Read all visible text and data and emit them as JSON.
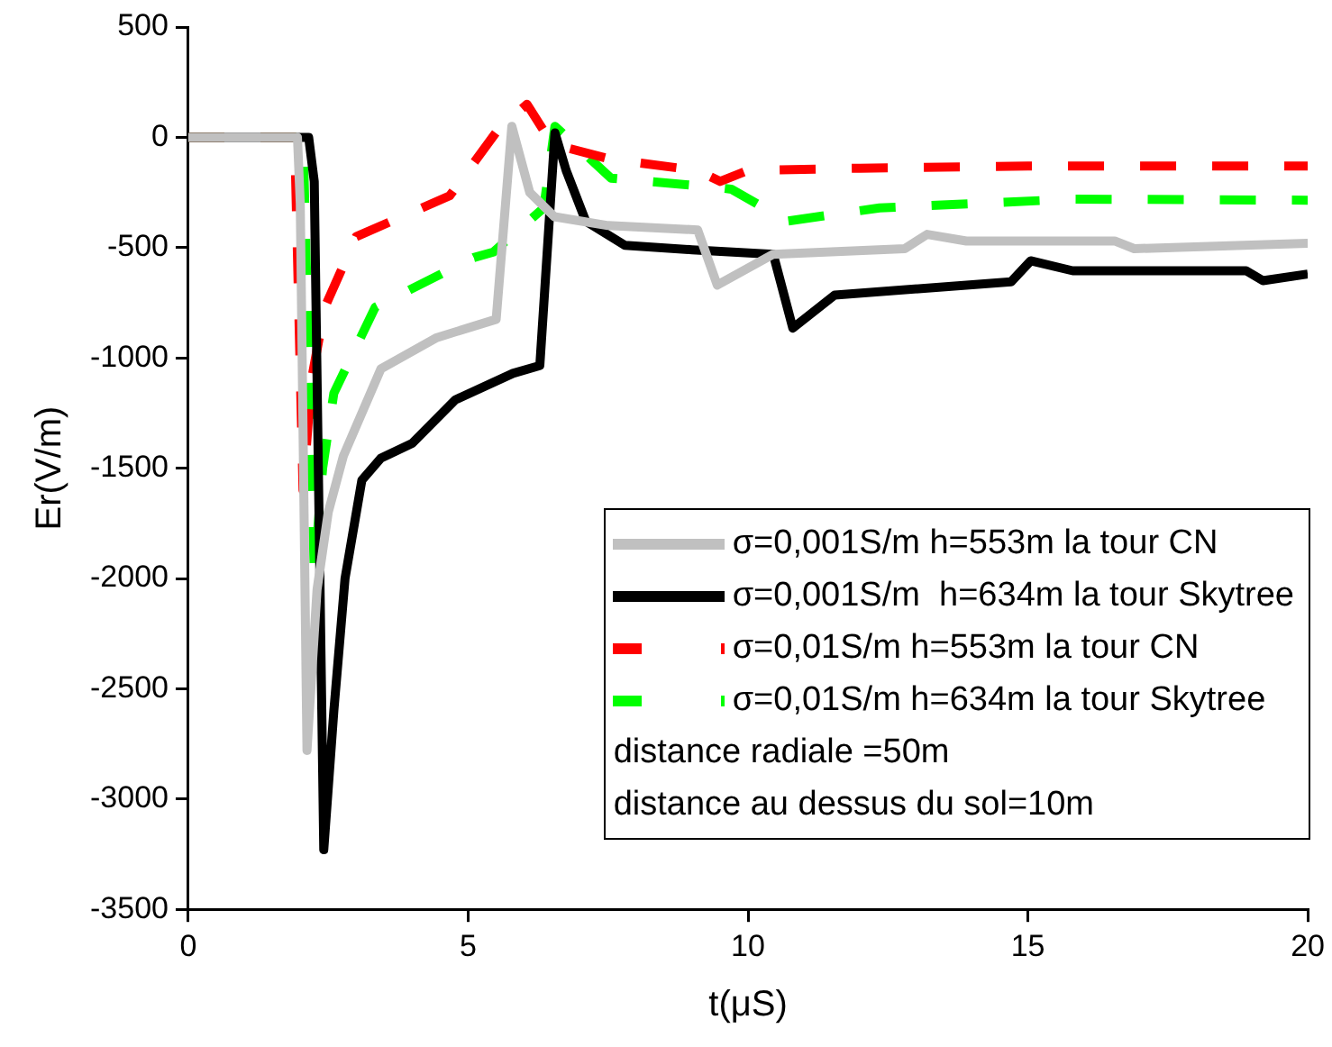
{
  "chart_data": {
    "type": "line",
    "xlabel": "t(μS)",
    "ylabel": "Er(V/m)",
    "xlim": [
      0,
      20
    ],
    "xticks": [
      0,
      5,
      10,
      15,
      20
    ],
    "ylim": [
      -3500,
      500
    ],
    "yticks": [
      500,
      0,
      -500,
      -1000,
      -1500,
      -2000,
      -2500,
      -3000,
      -3500
    ],
    "grid": false,
    "legend": "bottom right",
    "marker": "none",
    "series": [
      {
        "name": "σ=0,001S/m h=553m la tour CN",
        "color": "#c0c0c0",
        "line_style": "solid",
        "x": [
          0,
          1.95,
          2.0,
          2.12,
          2.3,
          2.5,
          2.77,
          3.44,
          4.44,
          5.5,
          5.78,
          6.1,
          6.54,
          7.5,
          9.1,
          9.45,
          10.45,
          12.8,
          13.2,
          13.9,
          16.55,
          16.9,
          20
        ],
        "values": [
          0,
          0,
          -300,
          -2780,
          -2050,
          -1700,
          -1445,
          -1050,
          -908,
          -825,
          50,
          -250,
          -360,
          -400,
          -420,
          -670,
          -530,
          -505,
          -440,
          -470,
          -470,
          -505,
          -480
        ]
      },
      {
        "name": "σ=0,001S/m  h=634m la tour Skytree",
        "color": "#000000",
        "line_style": "solid",
        "x": [
          0,
          2.15,
          2.25,
          2.42,
          2.6,
          2.8,
          3.1,
          3.44,
          4.0,
          4.77,
          5.8,
          6.28,
          6.55,
          6.75,
          7.1,
          7.8,
          9.0,
          10.45,
          10.8,
          11.55,
          14.7,
          15.05,
          15.8,
          18.9,
          19.2,
          20
        ],
        "values": [
          0,
          0,
          -200,
          -3230,
          -2600,
          -2000,
          -1555,
          -1455,
          -1387,
          -1190,
          -1070,
          -1035,
          20,
          -150,
          -380,
          -490,
          -510,
          -530,
          -865,
          -715,
          -655,
          -560,
          -605,
          -605,
          -650,
          -620
        ]
      },
      {
        "name": "σ=0,01S/m h=553m la tour CN",
        "color": "#ff0000",
        "line_style": "dashed",
        "x": [
          0,
          1.9,
          2.05,
          2.2,
          2.44,
          3.0,
          4.67,
          5.55,
          6.05,
          6.5,
          7.55,
          9.1,
          9.5,
          10.0,
          12.0,
          15.0,
          20
        ],
        "values": [
          0,
          0,
          -1600,
          -1100,
          -770,
          -450,
          -265,
          40,
          150,
          -30,
          -100,
          -150,
          -200,
          -150,
          -140,
          -130,
          -130
        ]
      },
      {
        "name": "σ=0,01S/m h=634m la tour Skytree",
        "color": "#00ff00",
        "line_style": "dashed",
        "x": [
          0,
          2.05,
          2.25,
          2.4,
          2.6,
          3.34,
          5.1,
          5.45,
          6.35,
          6.55,
          7.55,
          9.35,
          9.7,
          10.7,
          12.35,
          15.8,
          20
        ],
        "values": [
          0,
          0,
          -1975,
          -1500,
          -1160,
          -770,
          -545,
          -520,
          -320,
          50,
          -185,
          -225,
          -235,
          -380,
          -320,
          -280,
          -285
        ]
      }
    ],
    "annotations": [
      "distance radiale =50m",
      "distance au dessus du sol=10m"
    ]
  }
}
